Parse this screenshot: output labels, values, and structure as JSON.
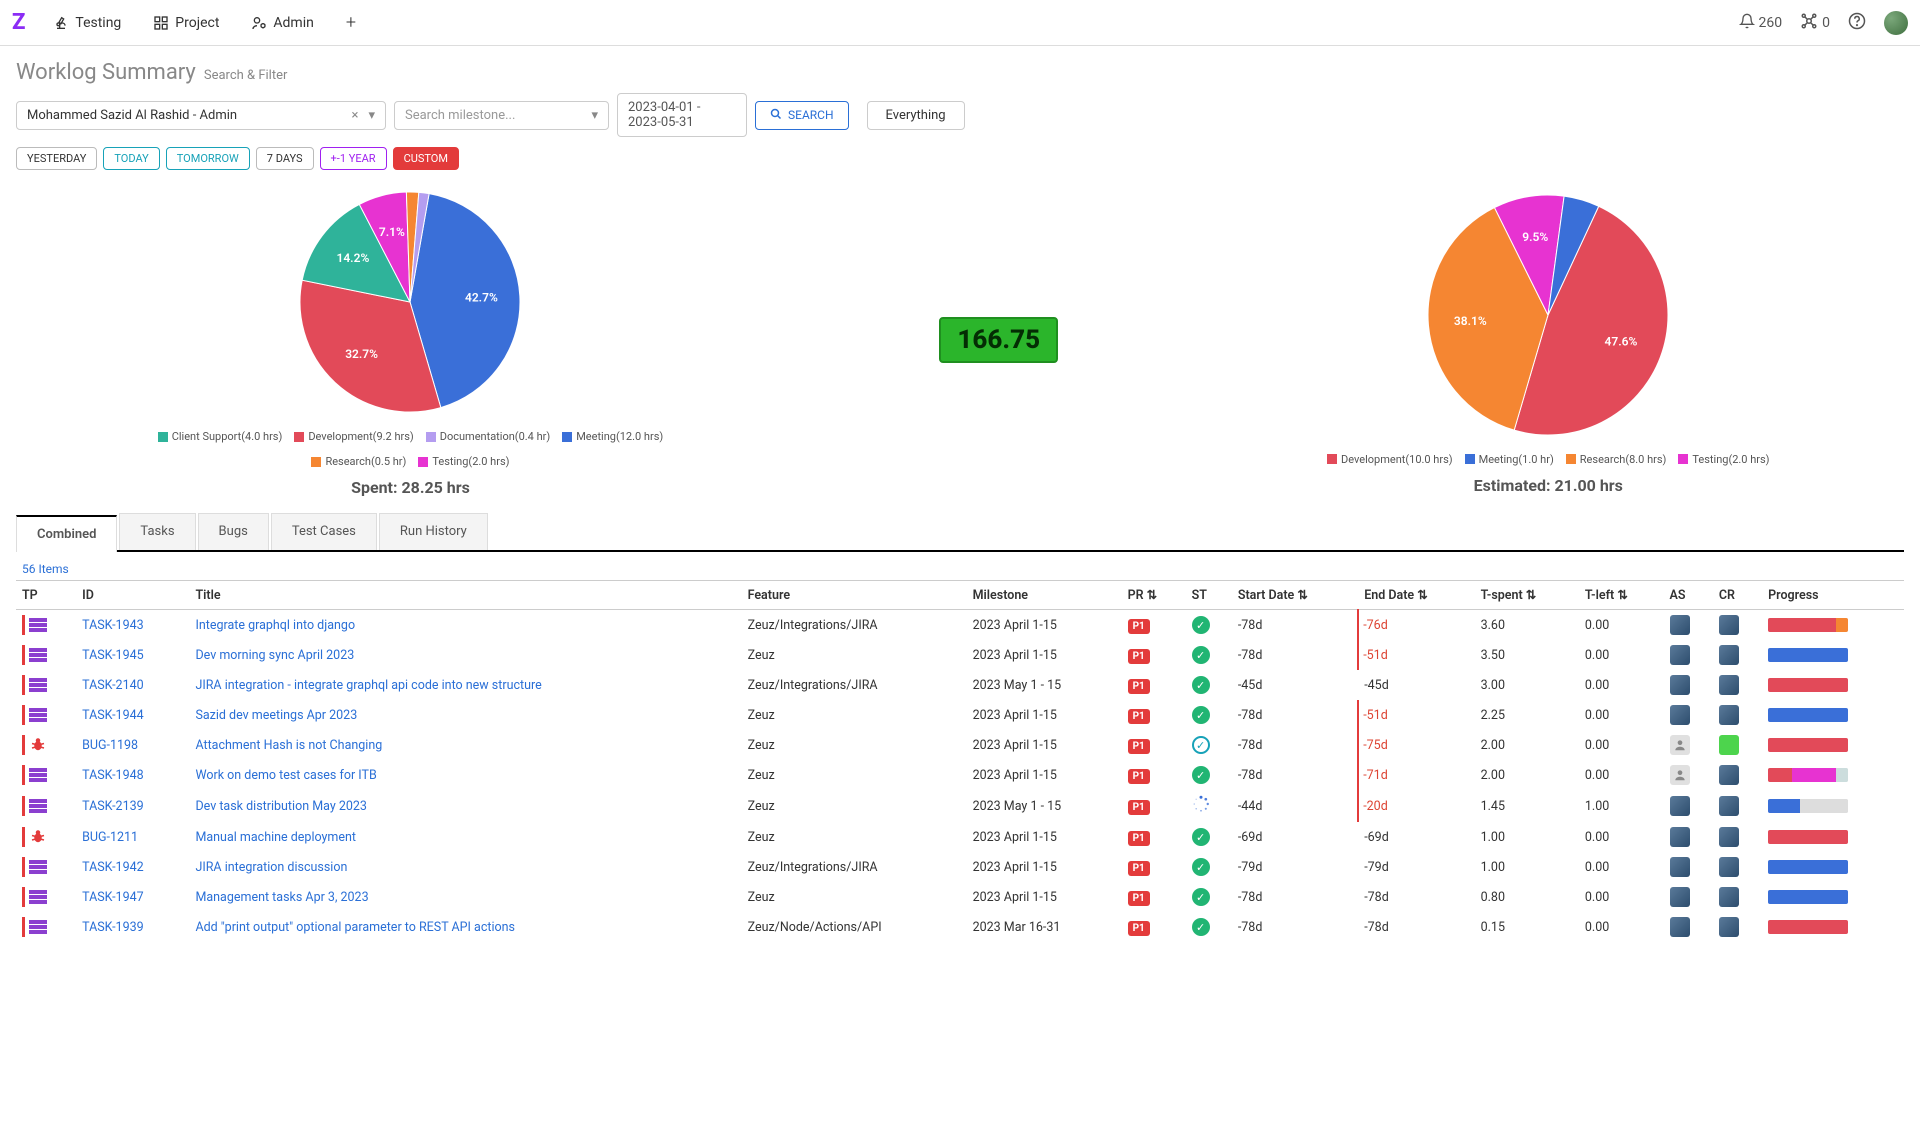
{
  "topbar": {
    "nav": [
      {
        "label": "Testing",
        "icon": "microscope"
      },
      {
        "label": "Project",
        "icon": "grid"
      },
      {
        "label": "Admin",
        "icon": "user-gear"
      }
    ],
    "notif_count": "260",
    "network_count": "0"
  },
  "page": {
    "title": "Worklog Summary",
    "subtitle": "Search & Filter"
  },
  "filters": {
    "user": "Mohammed Sazid Al Rashid - Admin",
    "milestone_placeholder": "Search milestone...",
    "date_range": "2023-04-01 - 2023-05-31",
    "search_label": "SEARCH",
    "everything_label": "Everything"
  },
  "quick": [
    "YESTERDAY",
    "TODAY",
    "TOMORROW",
    "7 DAYS",
    "+-1 YEAR",
    "CUSTOM"
  ],
  "total_hours": "166.75",
  "spent_chart": {
    "caption": "Spent: 28.25 hrs",
    "slices": [
      {
        "label": "Meeting(12.0 hrs)",
        "pct": 42.7,
        "pct_label": "42.7%",
        "color": "#3a6fd8"
      },
      {
        "label": "Development(9.2 hrs)",
        "pct": 32.7,
        "pct_label": "32.7%",
        "color": "#e24a59"
      },
      {
        "label": "Client Support(4.0 hrs)",
        "pct": 14.2,
        "pct_label": "14.2%",
        "color": "#2fb39a"
      },
      {
        "label": "Testing(2.0 hrs)",
        "pct": 7.1,
        "pct_label": "7.1%",
        "color": "#e733d1"
      },
      {
        "label": "Research(0.5 hr)",
        "pct": 1.8,
        "pct_label": "",
        "color": "#f58632"
      },
      {
        "label": "Documentation(0.4 hr)",
        "pct": 1.5,
        "pct_label": "",
        "color": "#b49df0"
      }
    ],
    "legend_order": [
      2,
      1,
      5,
      0,
      4,
      3
    ],
    "radius": 110
  },
  "est_chart": {
    "caption": "Estimated: 21.00 hrs",
    "slices": [
      {
        "label": "Development(10.0 hrs)",
        "pct": 47.6,
        "pct_label": "47.6%",
        "color": "#e24a59"
      },
      {
        "label": "Research(8.0 hrs)",
        "pct": 38.1,
        "pct_label": "38.1%",
        "color": "#f58632"
      },
      {
        "label": "Testing(2.0 hrs)",
        "pct": 9.5,
        "pct_label": "9.5%",
        "color": "#e733d1"
      },
      {
        "label": "Meeting(1.0 hr)",
        "pct": 4.8,
        "pct_label": "",
        "color": "#3a6fd8"
      }
    ],
    "legend_order": [
      0,
      3,
      1,
      2
    ],
    "radius": 120
  },
  "tabs": [
    "Combined",
    "Tasks",
    "Bugs",
    "Test Cases",
    "Run History"
  ],
  "items_count": "56 Items",
  "columns": [
    "TP",
    "ID",
    "Title",
    "Feature",
    "Milestone",
    "PR ⇅",
    "ST",
    "Start Date ⇅",
    "End Date ⇅",
    "T-spent ⇅",
    "T-left ⇅",
    "AS",
    "CR",
    "Progress"
  ],
  "rows": [
    {
      "tp": "task",
      "id": "TASK-1943",
      "title": "Integrate graphql into django",
      "feature": "Zeuz/Integrations/JIRA",
      "milestone": "2023 April 1-15",
      "pr": "P1",
      "st": "done",
      "start": "-78d",
      "start_danger": false,
      "end": "-76d",
      "end_danger": true,
      "spent": "3.60",
      "left": "0.00",
      "as": "av",
      "cr": "av",
      "progress": [
        [
          "#e24a59",
          85
        ],
        [
          "#f58632",
          15
        ]
      ]
    },
    {
      "tp": "task",
      "id": "TASK-1945",
      "title": "Dev morning sync April 2023",
      "feature": "Zeuz",
      "milestone": "2023 April 1-15",
      "pr": "P1",
      "st": "done",
      "start": "-78d",
      "start_danger": false,
      "end": "-51d",
      "end_danger": true,
      "spent": "3.50",
      "left": "0.00",
      "as": "av",
      "cr": "av",
      "progress": [
        [
          "#3a6fd8",
          100
        ]
      ]
    },
    {
      "tp": "task",
      "id": "TASK-2140",
      "title": "JIRA integration - integrate graphql api code into new structure",
      "feature": "Zeuz/Integrations/JIRA",
      "milestone": "2023 May 1 - 15",
      "pr": "P1",
      "st": "done",
      "start": "-45d",
      "start_danger": false,
      "end": "-45d",
      "end_danger": false,
      "spent": "3.00",
      "left": "0.00",
      "as": "av",
      "cr": "av",
      "progress": [
        [
          "#e24a59",
          100
        ]
      ]
    },
    {
      "tp": "task",
      "id": "TASK-1944",
      "title": "Sazid dev meetings Apr 2023",
      "feature": "Zeuz",
      "milestone": "2023 April 1-15",
      "pr": "P1",
      "st": "done",
      "start": "-78d",
      "start_danger": false,
      "end": "-51d",
      "end_danger": true,
      "spent": "2.25",
      "left": "0.00",
      "as": "av",
      "cr": "av",
      "progress": [
        [
          "#3a6fd8",
          100
        ]
      ]
    },
    {
      "tp": "bug",
      "id": "BUG-1198",
      "title": "Attachment Hash is not Changing",
      "feature": "Zeuz",
      "milestone": "2023 April 1-15",
      "pr": "P1",
      "st": "open",
      "start": "-78d",
      "start_danger": false,
      "end": "-75d",
      "end_danger": true,
      "spent": "2.00",
      "left": "0.00",
      "as": "person",
      "cr": "green",
      "progress": [
        [
          "#e24a59",
          100
        ]
      ]
    },
    {
      "tp": "task",
      "id": "TASK-1948",
      "title": "Work on demo test cases for ITB",
      "feature": "Zeuz",
      "milestone": "2023 April 1-15",
      "pr": "P1",
      "st": "done",
      "start": "-78d",
      "start_danger": false,
      "end": "-71d",
      "end_danger": true,
      "spent": "2.00",
      "left": "0.00",
      "as": "person",
      "cr": "av",
      "progress": [
        [
          "#e24a59",
          30
        ],
        [
          "#e733d1",
          55
        ],
        [
          "#cdd",
          15
        ]
      ]
    },
    {
      "tp": "task",
      "id": "TASK-2139",
      "title": "Dev task distribution May 2023",
      "feature": "Zeuz",
      "milestone": "2023 May 1 - 15",
      "pr": "P1",
      "st": "progress",
      "start": "-44d",
      "start_danger": false,
      "end": "-20d",
      "end_danger": true,
      "spent": "1.45",
      "left": "1.00",
      "as": "av",
      "cr": "av",
      "progress": [
        [
          "#3a6fd8",
          40
        ],
        [
          "#ddd",
          60
        ]
      ]
    },
    {
      "tp": "bug",
      "id": "BUG-1211",
      "title": "Manual machine deployment",
      "feature": "Zeuz",
      "milestone": "2023 April 1-15",
      "pr": "P1",
      "st": "done",
      "start": "-69d",
      "start_danger": false,
      "end": "-69d",
      "end_danger": false,
      "spent": "1.00",
      "left": "0.00",
      "as": "av",
      "cr": "av",
      "progress": [
        [
          "#e24a59",
          100
        ]
      ]
    },
    {
      "tp": "task",
      "id": "TASK-1942",
      "title": "JIRA integration discussion",
      "feature": "Zeuz/Integrations/JIRA",
      "milestone": "2023 April 1-15",
      "pr": "P1",
      "st": "done",
      "start": "-79d",
      "start_danger": false,
      "end": "-79d",
      "end_danger": false,
      "spent": "1.00",
      "left": "0.00",
      "as": "av",
      "cr": "av",
      "progress": [
        [
          "#3a6fd8",
          100
        ]
      ]
    },
    {
      "tp": "task",
      "id": "TASK-1947",
      "title": "Management tasks Apr 3, 2023",
      "feature": "Zeuz",
      "milestone": "2023 April 1-15",
      "pr": "P1",
      "st": "done",
      "start": "-78d",
      "start_danger": false,
      "end": "-78d",
      "end_danger": false,
      "spent": "0.80",
      "left": "0.00",
      "as": "av",
      "cr": "av",
      "progress": [
        [
          "#3a6fd8",
          100
        ]
      ]
    },
    {
      "tp": "task",
      "id": "TASK-1939",
      "title": "Add \"print output\" optional parameter to REST API actions",
      "feature": "Zeuz/Node/Actions/API",
      "milestone": "2023 Mar 16-31",
      "pr": "P1",
      "st": "done",
      "start": "-78d",
      "start_danger": false,
      "end": "-78d",
      "end_danger": false,
      "spent": "0.15",
      "left": "0.00",
      "as": "av",
      "cr": "av",
      "progress": [
        [
          "#e24a59",
          100
        ]
      ]
    }
  ]
}
